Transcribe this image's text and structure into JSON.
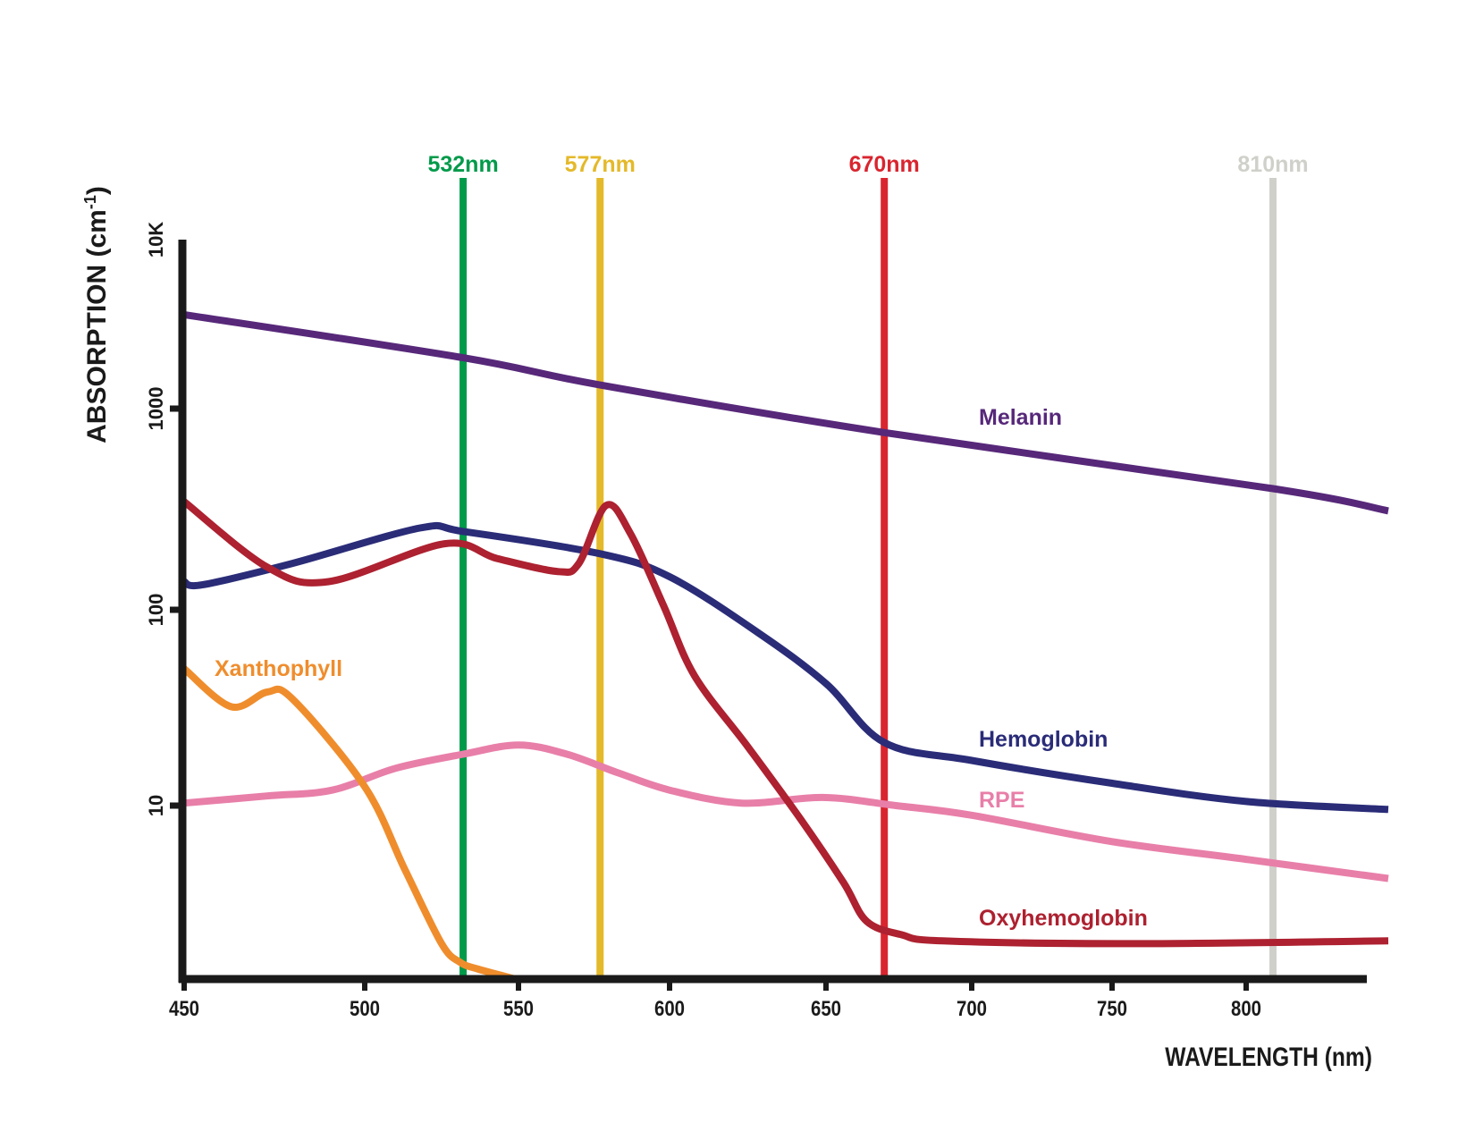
{
  "chart_data": {
    "type": "line",
    "title": "",
    "xlabel": "WAVELENGTH (nm)",
    "ylabel": "ABSORPTION (cm",
    "ylabel_superscript": "-1",
    "ylabel_close": ")",
    "xlim": [
      450,
      845
    ],
    "ylim": [
      1,
      10000
    ],
    "yscale": "log",
    "grid": false,
    "legend": "inline labels next to curves",
    "x_ticks": [
      450,
      500,
      550,
      600,
      650,
      700,
      750,
      800
    ],
    "x_tick_labels": [
      "450",
      "500",
      "550",
      "600",
      "650",
      "700",
      "750",
      "800"
    ],
    "y_ticks": [
      10,
      100,
      1000,
      10000
    ],
    "y_tick_labels": [
      "10",
      "100",
      "1000",
      "10K"
    ],
    "laser_lines": [
      {
        "label": "532nm",
        "wavelength": 532,
        "color": "#009a4a"
      },
      {
        "label": "577nm",
        "wavelength": 577,
        "color": "#e4b92a"
      },
      {
        "label": "670nm",
        "wavelength": 670,
        "color": "#d9252f"
      },
      {
        "label": "810nm",
        "wavelength": 810,
        "color": "#d0d0ca"
      }
    ],
    "series": [
      {
        "name": "Melanin",
        "color": "#57287a",
        "x": [
          450,
          532,
          577,
          670,
          810,
          853
        ],
        "y": [
          3600,
          2000,
          1380,
          760,
          400,
          310
        ]
      },
      {
        "name": "Hemoglobin",
        "color": "#2a2c78",
        "x": [
          450,
          455,
          480,
          518,
          532,
          577,
          600,
          628,
          650,
          670,
          700,
          750,
          800,
          853
        ],
        "y": [
          138,
          133,
          170,
          255,
          245,
          190,
          146,
          77,
          42,
          21,
          17,
          13,
          10.5,
          9.5
        ]
      },
      {
        "name": "RPE",
        "color": "#e87fa9",
        "x": [
          450,
          473,
          491,
          510,
          532,
          550,
          566,
          583,
          600,
          623,
          649,
          674,
          700,
          750,
          800,
          853
        ],
        "y": [
          10.3,
          11.2,
          12,
          15.5,
          18.3,
          20.4,
          18.3,
          14.7,
          12,
          10.3,
          11,
          10,
          8.8,
          6.2,
          4.9,
          3.8
        ]
      },
      {
        "name": "Oxyhemoglobin",
        "color": "#ad2130",
        "x": [
          450,
          473,
          490,
          526,
          543,
          563,
          570,
          579,
          587,
          598,
          608,
          625,
          642,
          656,
          664,
          676,
          690,
          758,
          853
        ],
        "y": [
          345,
          163,
          138,
          213,
          180,
          155,
          170,
          330,
          240,
          105,
          46,
          20,
          8.3,
          3.6,
          2.15,
          1.8,
          1.66,
          1.6,
          1.66
        ]
      },
      {
        "name": "Xanthophyll",
        "color": "#ef8d2d",
        "x": [
          450,
          463,
          473,
          480,
          500,
          513,
          525,
          531,
          537,
          549
        ],
        "y": [
          50,
          32,
          38,
          35,
          12.5,
          4.3,
          1.6,
          1.25,
          1.14,
          1
        ]
      }
    ]
  }
}
